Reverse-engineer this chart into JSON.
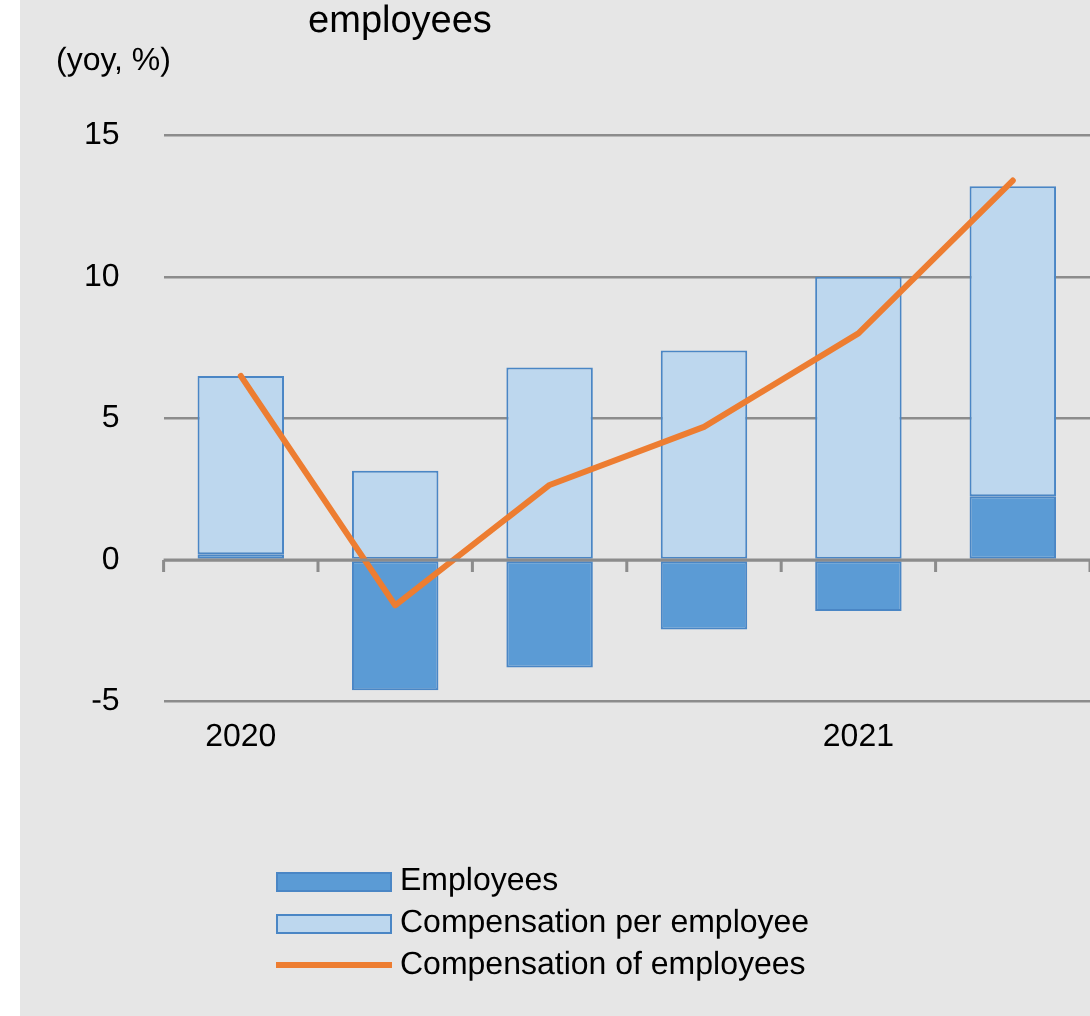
{
  "chart_data": {
    "type": "bar",
    "title": "employees",
    "ylabel": "(yoy, %)",
    "stacked": true,
    "categories": [
      "2020",
      null,
      null,
      null,
      "2021",
      null
    ],
    "series": [
      {
        "name": "Employees",
        "color": "#5b9bd5",
        "values": [
          0.2,
          -4.6,
          -3.8,
          -2.45,
          -1.8,
          2.25
        ]
      },
      {
        "name": "Compensation per employee",
        "color": "#bdd7ee",
        "values": [
          6.3,
          3.15,
          6.8,
          7.4,
          10.0,
          10.95
        ]
      },
      {
        "name": "Compensation of employees",
        "type": "line",
        "color": "#ed7d31",
        "values": [
          6.5,
          -1.6,
          2.65,
          4.7,
          8.0,
          13.4
        ]
      }
    ],
    "ylim": [
      -5,
      15
    ],
    "yticks": [
      -5,
      0,
      5,
      10,
      15
    ],
    "grid": "y",
    "legend": "bottom"
  }
}
